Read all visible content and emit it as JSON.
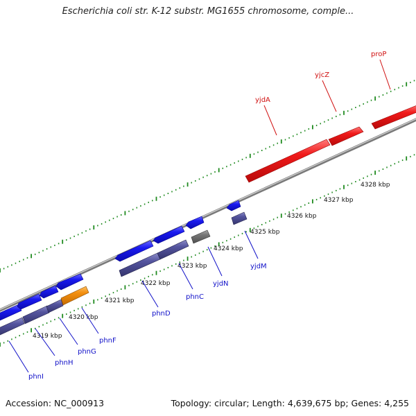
{
  "header": {
    "title": "Escherichia coli str. K-12 substr. MG1655 chromosome, comple..."
  },
  "footer": {
    "accession": "Accession: NC_000913",
    "topology": "Topology: circular; Length: 4,639,675 bp; Genes: 4,255"
  },
  "colors": {
    "backbone": "#8a8a8a",
    "tick": "#1f8a1f",
    "red_gene": "#e8111b",
    "blue_gene": "#1212e6",
    "purple_gene": "#4b4b9a",
    "orange_gene": "#f08a00",
    "gray_gene": "#6f6f6f",
    "red_label": "#d01010",
    "blue_label": "#1010c8"
  },
  "kbp_labels": [
    "4319 kbp",
    "4320 kbp",
    "4321 kbp",
    "4322 kbp",
    "4323 kbp",
    "4324 kbp",
    "4325 kbp",
    "4326 kbp",
    "4327 kbp",
    "4328 kbp"
  ],
  "gene_labels": [
    {
      "name": "phnI",
      "color": "blue"
    },
    {
      "name": "phnH",
      "color": "blue"
    },
    {
      "name": "phnG",
      "color": "blue"
    },
    {
      "name": "phnF",
      "color": "blue"
    },
    {
      "name": "phnD",
      "color": "blue"
    },
    {
      "name": "phnC",
      "color": "blue"
    },
    {
      "name": "yjdN",
      "color": "blue"
    },
    {
      "name": "yjdM",
      "color": "blue"
    },
    {
      "name": "yjdA",
      "color": "red"
    },
    {
      "name": "yjcZ",
      "color": "red"
    },
    {
      "name": "proP",
      "color": "red"
    }
  ],
  "features": [
    {
      "name": "phnI",
      "strand": "reverse",
      "color": "purple"
    },
    {
      "name": "phnH",
      "strand": "reverse",
      "color": "purple"
    },
    {
      "name": "phnG",
      "strand": "reverse",
      "color": "purple"
    },
    {
      "name": "phnF",
      "strand": "reverse",
      "color": "orange"
    },
    {
      "name": "phnD",
      "strand": "reverse",
      "color": "purple"
    },
    {
      "name": "phnC",
      "strand": "reverse",
      "color": "purple"
    },
    {
      "name": "yjdN",
      "strand": "reverse",
      "color": "gray"
    },
    {
      "name": "yjdM",
      "strand": "reverse",
      "color": "purple"
    },
    {
      "name": "yjdA",
      "strand": "forward",
      "color": "red"
    },
    {
      "name": "yjcZ",
      "strand": "forward",
      "color": "red"
    },
    {
      "name": "proP",
      "strand": "forward",
      "color": "red"
    }
  ]
}
